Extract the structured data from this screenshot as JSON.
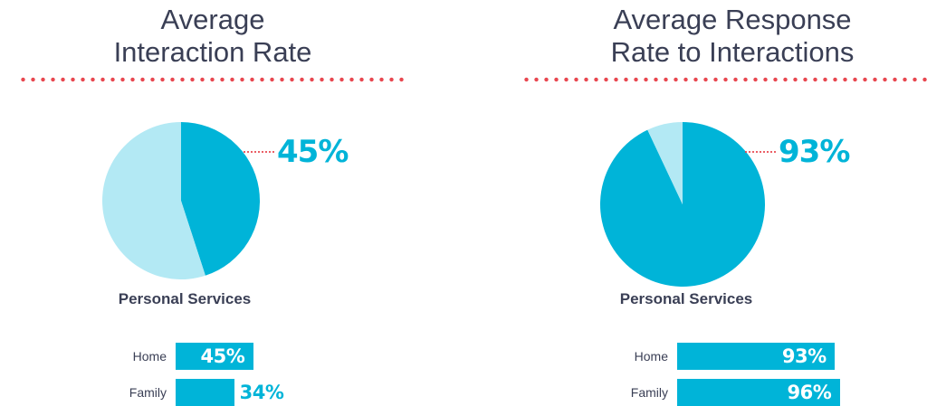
{
  "colors": {
    "primary": "#00b4d8",
    "light": "#b3e9f4",
    "accent_dots": "#e8474f",
    "text": "#3a3f55"
  },
  "chart_data": [
    {
      "type": "pie",
      "title": "Average\nInteraction Rate",
      "title_lines": [
        "Average",
        "Interaction Rate"
      ],
      "subtitle": "Personal Services",
      "highlight_value": 45,
      "highlight_label": "45%",
      "slices": [
        {
          "value": 45,
          "color": "#00b4d8"
        },
        {
          "value": 55,
          "color": "#b3e9f4"
        }
      ],
      "bars": {
        "type": "bar",
        "categories": [
          "Home",
          "Family"
        ],
        "values": [
          45,
          34
        ],
        "labels": [
          "45%",
          "34%"
        ]
      }
    },
    {
      "type": "pie",
      "title": "Average Response\nRate to Interactions",
      "title_lines": [
        "Average Response",
        "Rate to Interactions"
      ],
      "subtitle": "Personal Services",
      "highlight_value": 93,
      "highlight_label": "93%",
      "slices": [
        {
          "value": 93,
          "color": "#00b4d8"
        },
        {
          "value": 7,
          "color": "#b3e9f4"
        }
      ],
      "bars": {
        "type": "bar",
        "categories": [
          "Home",
          "Family"
        ],
        "values": [
          93,
          96
        ],
        "labels": [
          "93%",
          "96%"
        ]
      }
    }
  ]
}
